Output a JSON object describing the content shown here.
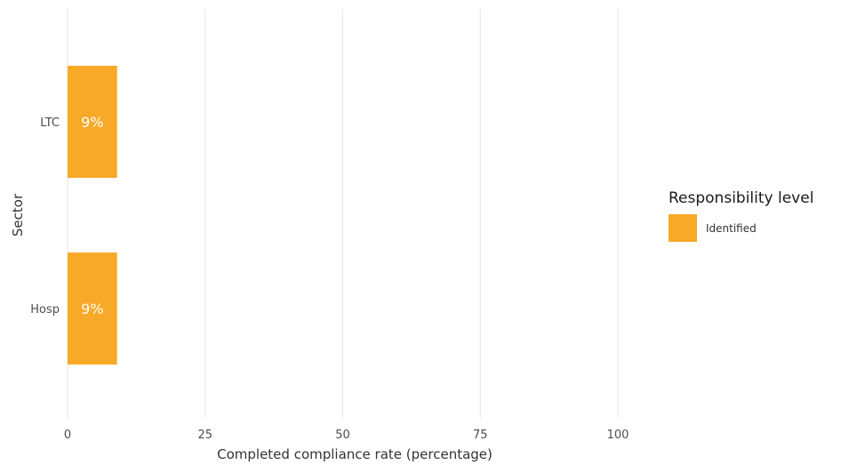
{
  "chart_data": {
    "type": "bar",
    "orientation": "horizontal",
    "categories": [
      "LTC",
      "Hosp"
    ],
    "series": [
      {
        "name": "Identified",
        "values": [
          9,
          9
        ],
        "labels": [
          "9%",
          "9%"
        ],
        "color": "#F8A928"
      }
    ],
    "xlabel": "Completed compliance rate (percentage)",
    "ylabel": "Sector",
    "xlim": [
      0,
      100
    ],
    "xticks": [
      "0",
      "25",
      "50",
      "75",
      "100"
    ],
    "grid": true,
    "legend": {
      "title": "Responsibility level",
      "placement": "right"
    }
  }
}
